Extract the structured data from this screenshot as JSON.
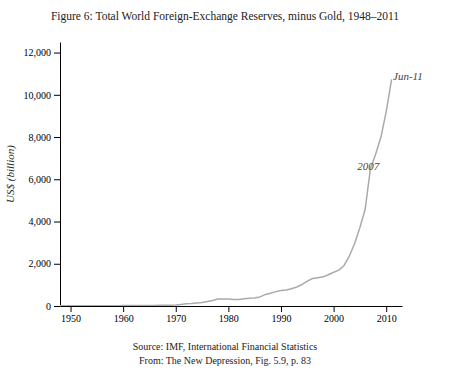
{
  "chart_data": {
    "type": "line",
    "title": "Figure 6: Total World Foreign-Exchange Reserves, minus Gold, 1948–2011",
    "y_label": "US$ (billion)",
    "annotations": [
      {
        "text": "2007",
        "x": 2004.5,
        "y": 6600
      },
      {
        "text": "Jun-11",
        "x": 2011.3,
        "y": 10900
      }
    ],
    "source": [
      "Source: IMF, International Financial Statistics",
      "From: The New Depression, Fig. 5.9, p. 83"
    ],
    "color": "#aaaaaa",
    "grid": false,
    "xlim": [
      1948,
      2013
    ],
    "ylim": [
      0,
      12500
    ],
    "xticks": [
      1950,
      1960,
      1970,
      1980,
      1990,
      2000,
      2010
    ],
    "yticks": [
      0,
      {
        "value": 2000,
        "label": "2,000"
      },
      {
        "value": 4000,
        "label": "4,000"
      },
      {
        "value": 6000,
        "label": "6,000"
      },
      {
        "value": 8000,
        "label": "8,000"
      },
      {
        "value": 10000,
        "label": "10,000"
      },
      {
        "value": 12000,
        "label": "12,000"
      }
    ],
    "x": [
      1948,
      1949,
      1950,
      1951,
      1952,
      1953,
      1954,
      1955,
      1956,
      1957,
      1958,
      1959,
      1960,
      1961,
      1962,
      1963,
      1964,
      1965,
      1966,
      1967,
      1968,
      1969,
      1970,
      1971,
      1972,
      1973,
      1974,
      1975,
      1976,
      1977,
      1978,
      1979,
      1980,
      1981,
      1982,
      1983,
      1984,
      1985,
      1986,
      1987,
      1988,
      1989,
      1990,
      1991,
      1992,
      1993,
      1994,
      1995,
      1996,
      1997,
      1998,
      1999,
      2000,
      2001,
      2002,
      2003,
      2004,
      2005,
      2006,
      2007,
      2008,
      2009,
      2010,
      2011
    ],
    "values": [
      14,
      14,
      13,
      13,
      14,
      15,
      16,
      16,
      17,
      16,
      17,
      17,
      18,
      19,
      20,
      23,
      26,
      28,
      29,
      33,
      38,
      38,
      45,
      75,
      105,
      120,
      145,
      170,
      210,
      265,
      330,
      330,
      330,
      310,
      310,
      340,
      370,
      380,
      430,
      540,
      600,
      680,
      730,
      760,
      820,
      900,
      1020,
      1180,
      1300,
      1340,
      1380,
      1480,
      1600,
      1700,
      1920,
      2370,
      2960,
      3720,
      4580,
      6500,
      7200,
      8000,
      9200,
      10700
    ]
  }
}
